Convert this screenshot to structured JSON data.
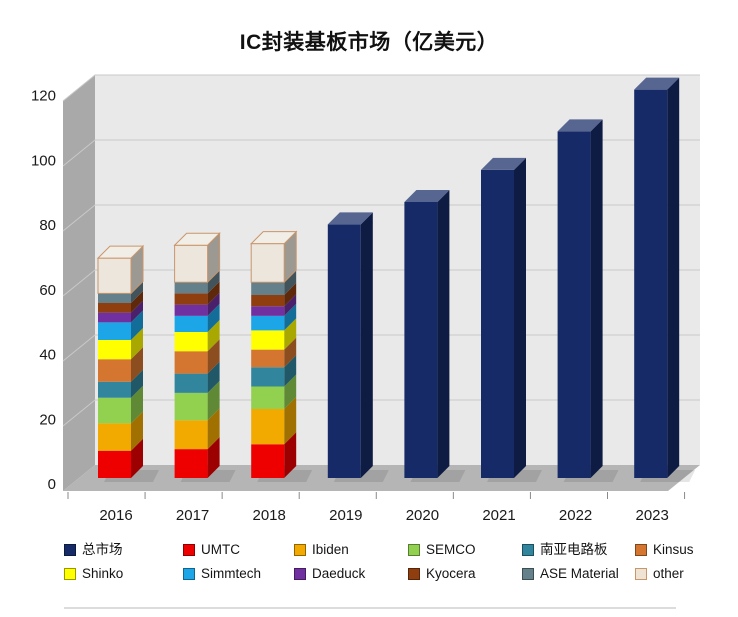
{
  "title": "IC封装基板市场（亿美元）",
  "chart_data": {
    "type": "bar",
    "subtype": "3d-column, stacked 2016-2018, single total bar 2019-2023",
    "title": "IC封装基板市场（亿美元）",
    "unit": "亿美元",
    "xlabel": "",
    "ylabel": "",
    "ylim": [
      0,
      120
    ],
    "yticks": [
      0,
      20,
      40,
      60,
      80,
      100,
      120
    ],
    "grid": true,
    "legend_position": "bottom",
    "categories": [
      "2016",
      "2017",
      "2018",
      "2019",
      "2020",
      "2021",
      "2022",
      "2023"
    ],
    "total_series": {
      "id": "total-market",
      "name": "总市场",
      "color": "#152a66",
      "values": [
        null,
        null,
        null,
        79,
        86,
        96,
        108,
        121
      ]
    },
    "stacked_series": [
      {
        "id": "umtc",
        "name": "UMTC",
        "color": "#ee0000",
        "values": [
          8.5,
          9,
          10.5,
          null,
          null,
          null,
          null,
          null
        ]
      },
      {
        "id": "ibiden",
        "name": "Ibiden",
        "color": "#f2a900",
        "values": [
          8.5,
          9,
          11,
          null,
          null,
          null,
          null,
          null
        ]
      },
      {
        "id": "semco",
        "name": "SEMCO",
        "color": "#92d050",
        "values": [
          8,
          8.5,
          7,
          null,
          null,
          null,
          null,
          null
        ]
      },
      {
        "id": "nanya-pcb",
        "name": "南亚电路板",
        "color": "#31859c",
        "values": [
          5,
          6,
          6,
          null,
          null,
          null,
          null,
          null
        ]
      },
      {
        "id": "kinsus",
        "name": "Kinsus",
        "color": "#d4762f",
        "values": [
          7,
          7,
          5.5,
          null,
          null,
          null,
          null,
          null
        ]
      },
      {
        "id": "shinko",
        "name": "Shinko",
        "color": "#ffff00",
        "values": [
          6,
          6,
          6,
          null,
          null,
          null,
          null,
          null
        ]
      },
      {
        "id": "simmtech",
        "name": "Simmtech",
        "color": "#1ca6e8",
        "values": [
          5.5,
          5,
          4.5,
          null,
          null,
          null,
          null,
          null
        ]
      },
      {
        "id": "daeduck",
        "name": "Daeduck",
        "color": "#7030a0",
        "values": [
          3,
          3.5,
          3,
          null,
          null,
          null,
          null,
          null
        ]
      },
      {
        "id": "kyocera",
        "name": "Kyocera",
        "color": "#8f3e10",
        "values": [
          3,
          3.5,
          3.5,
          null,
          null,
          null,
          null,
          null
        ]
      },
      {
        "id": "ase-material",
        "name": "ASE Material",
        "color": "#64808a",
        "values": [
          3,
          3.5,
          4,
          null,
          null,
          null,
          null,
          null
        ]
      },
      {
        "id": "other",
        "name": "other",
        "color": "#ece6dd",
        "border": "#c9956a",
        "values": [
          11,
          11.5,
          12,
          null,
          null,
          null,
          null,
          null
        ]
      }
    ],
    "stacked_totals": {
      "2016": 68.5,
      "2017": 72.5,
      "2018": 73
    },
    "legend": [
      {
        "id": "total-market",
        "label": "总市场",
        "color": "#152a66"
      },
      {
        "id": "umtc",
        "label": "UMTC",
        "color": "#ee0000"
      },
      {
        "id": "ibiden",
        "label": "Ibiden",
        "color": "#f2a900"
      },
      {
        "id": "semco",
        "label": "SEMCO",
        "color": "#92d050"
      },
      {
        "id": "nanya-pcb",
        "label": "南亚电路板",
        "color": "#31859c"
      },
      {
        "id": "kinsus",
        "label": "Kinsus",
        "color": "#d4762f"
      },
      {
        "id": "shinko",
        "label": "Shinko",
        "color": "#ffff00"
      },
      {
        "id": "simmtech",
        "label": "Simmtech",
        "color": "#1ca6e8"
      },
      {
        "id": "daeduck",
        "label": "Daeduck",
        "color": "#7030a0"
      },
      {
        "id": "kyocera",
        "label": "Kyocera",
        "color": "#8f3e10"
      },
      {
        "id": "ase-material",
        "label": "ASE Material",
        "color": "#64808a"
      },
      {
        "id": "other",
        "label": "other",
        "color": "#efe3d3",
        "border": "#c9956a"
      }
    ],
    "colors": {
      "wall_back": "#e9e9e9",
      "wall_side": "#a9a9a9",
      "floor": "#b5b5b5",
      "gridline": "#c9c9c9",
      "tick": "#8a8a8a"
    }
  }
}
